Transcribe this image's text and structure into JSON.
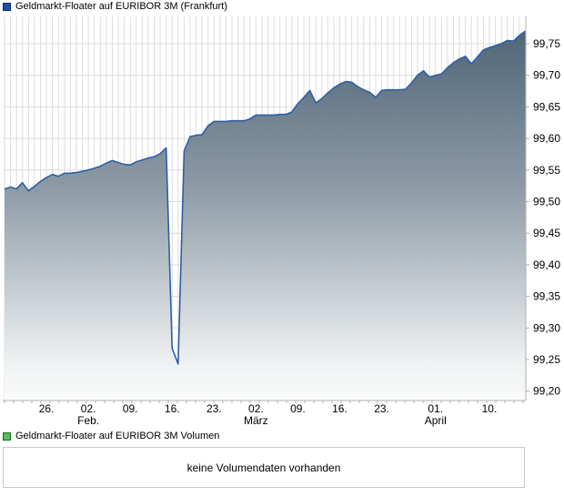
{
  "legend_top": {
    "label": "Geldmarkt-Floater auf EURIBOR 3M (Frankfurt)",
    "swatch_color": "#1d4fa5",
    "swatch_border": "#0f2d66"
  },
  "legend_volume": {
    "label": "Geldmarkt-Floater auf EURIBOR 3M Volumen",
    "swatch_color": "#55bb5b",
    "swatch_border": "#1c6b21"
  },
  "volume_box": {
    "message": "keine Volumendaten vorhanden"
  },
  "chart_data": {
    "type": "area",
    "title": "Geldmarkt-Floater auf EURIBOR 3M (Frankfurt)",
    "ylabel": "",
    "xlabel": "",
    "ylim": [
      99.185,
      99.793
    ],
    "grid": true,
    "legend_position": "top-left",
    "line_color": "#2d5fa6",
    "grid_color": "#dcdcdc",
    "axis_color": "#b0b0b0",
    "area_gradient": {
      "offsets": [
        0,
        0.45,
        0.9,
        1
      ],
      "colors": [
        "#4a6174",
        "#8e9ba6",
        "#eef1f2",
        "#fafbfb"
      ]
    },
    "y_ticks": [
      {
        "value": 99.75,
        "label": "99,75"
      },
      {
        "value": 99.7,
        "label": "99,70"
      },
      {
        "value": 99.65,
        "label": "99,65"
      },
      {
        "value": 99.6,
        "label": "99,60"
      },
      {
        "value": 99.55,
        "label": "99,55"
      },
      {
        "value": 99.5,
        "label": "99,50"
      },
      {
        "value": 99.45,
        "label": "99,45"
      },
      {
        "value": 99.4,
        "label": "99,40"
      },
      {
        "value": 99.35,
        "label": "99,35"
      },
      {
        "value": 99.3,
        "label": "99,30"
      },
      {
        "value": 99.25,
        "label": "99,25"
      },
      {
        "value": 99.2,
        "label": "99,20"
      }
    ],
    "x_ticks": [
      {
        "day": 7,
        "label": "26.",
        "sub": ""
      },
      {
        "day": 14,
        "label": "02.",
        "sub": "Feb."
      },
      {
        "day": 21,
        "label": "09.",
        "sub": ""
      },
      {
        "day": 28,
        "label": "16.",
        "sub": ""
      },
      {
        "day": 35,
        "label": "23.",
        "sub": ""
      },
      {
        "day": 42,
        "label": "02.",
        "sub": "März"
      },
      {
        "day": 49,
        "label": "09.",
        "sub": ""
      },
      {
        "day": 56,
        "label": "16.",
        "sub": ""
      },
      {
        "day": 63,
        "label": "23.",
        "sub": ""
      },
      {
        "day": 72,
        "label": "01.",
        "sub": "April"
      },
      {
        "day": 81,
        "label": "10.",
        "sub": ""
      }
    ],
    "values": [
      99.52,
      99.523,
      99.52,
      99.53,
      99.517,
      99.524,
      99.532,
      99.538,
      99.543,
      99.54,
      99.545,
      99.545,
      99.546,
      99.548,
      99.55,
      99.553,
      99.556,
      99.561,
      99.565,
      99.562,
      99.559,
      99.558,
      99.563,
      99.566,
      99.569,
      99.571,
      99.576,
      99.585,
      99.268,
      99.243,
      99.58,
      99.603,
      99.605,
      99.606,
      99.62,
      99.627,
      99.627,
      99.627,
      99.628,
      99.628,
      99.628,
      99.631,
      99.637,
      99.637,
      99.637,
      99.637,
      99.638,
      99.638,
      99.642,
      99.655,
      99.665,
      99.676,
      99.656,
      99.663,
      99.672,
      99.68,
      99.686,
      99.69,
      99.689,
      99.682,
      99.677,
      99.673,
      99.665,
      99.676,
      99.677,
      99.677,
      99.677,
      99.678,
      99.688,
      99.7,
      99.707,
      99.697,
      99.7,
      99.702,
      99.712,
      99.72,
      99.726,
      99.73,
      99.718,
      99.729,
      99.74,
      99.744,
      99.747,
      99.75,
      99.755,
      99.754,
      99.763,
      99.77
    ]
  }
}
